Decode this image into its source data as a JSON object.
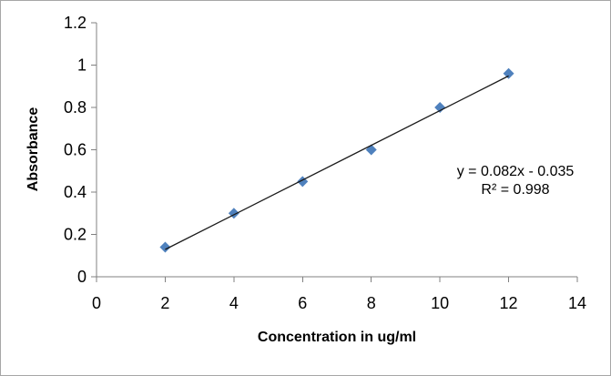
{
  "frame": {
    "background": "#ffffff",
    "border_color": "#a6a6a6"
  },
  "chart_data": {
    "type": "scatter",
    "title": "",
    "xlabel": "Concentration in ug/ml",
    "ylabel": "Absorbance",
    "xlim": [
      0,
      14
    ],
    "ylim": [
      0,
      1.2
    ],
    "x_ticks": [
      0,
      2,
      4,
      6,
      8,
      10,
      12,
      14
    ],
    "y_ticks": [
      "0",
      "0.2",
      "0.4",
      "0.6",
      "0.8",
      "1",
      "1.2"
    ],
    "grid": false,
    "legend": "none",
    "axis_color": "#808080",
    "text_color": "#000000",
    "series": [
      {
        "marker": "diamond",
        "marker_color": "#4f81bd",
        "marker_size": 12,
        "points": [
          [
            2,
            0.14
          ],
          [
            4,
            0.3
          ],
          [
            6,
            0.45
          ],
          [
            8,
            0.6
          ],
          [
            10,
            0.8
          ],
          [
            12,
            0.96
          ]
        ]
      }
    ],
    "trendline": {
      "equation": "y = 0.082x - 0.035",
      "r_squared_label": "R² = 0.998",
      "slope": 0.082,
      "intercept": -0.035,
      "x_range": [
        2,
        12
      ],
      "color": "#1a1a1a"
    }
  }
}
